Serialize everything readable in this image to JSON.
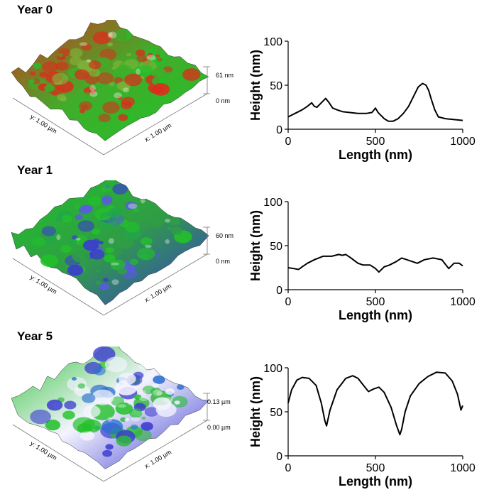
{
  "colors": {
    "red": "#e0291b",
    "green": "#22c02a",
    "blue": "#3a3ad0",
    "white": "#f4f4ff",
    "line": "#000000"
  },
  "chart_data": [
    {
      "type": "line",
      "title": "Year 0",
      "xlabel": "Length (nm)",
      "ylabel": "Height (nm)",
      "xlim": [
        0,
        1000
      ],
      "ylim": [
        0,
        100
      ],
      "xticks": [
        "0",
        "500",
        "1000"
      ],
      "yticks": [
        "0",
        "50",
        "100"
      ],
      "x": [
        0,
        40,
        80,
        110,
        135,
        150,
        165,
        190,
        215,
        235,
        255,
        280,
        310,
        350,
        400,
        450,
        480,
        500,
        515,
        530,
        550,
        575,
        600,
        630,
        660,
        690,
        720,
        745,
        770,
        790,
        805,
        820,
        840,
        860,
        900,
        950,
        1000
      ],
      "y": [
        14,
        18,
        22,
        26,
        30,
        26,
        25,
        30,
        35,
        30,
        24,
        22,
        20,
        19,
        18,
        18,
        19,
        24,
        19,
        16,
        12,
        9,
        9,
        12,
        18,
        26,
        38,
        48,
        52,
        50,
        44,
        34,
        22,
        14,
        12,
        11,
        10
      ],
      "surface": {
        "x_label": "x: 1.00 µm",
        "y_label": "y: 1.00 µm",
        "z_max_label": "61 nm",
        "z_min_label": "0 nm",
        "palette": "red-green"
      }
    },
    {
      "type": "line",
      "title": "Year 1",
      "xlabel": "Length (nm)",
      "ylabel": "Height (nm)",
      "xlim": [
        0,
        1000
      ],
      "ylim": [
        0,
        100
      ],
      "xticks": [
        "0",
        "500",
        "1000"
      ],
      "yticks": [
        "0",
        "50",
        "100"
      ],
      "x": [
        0,
        30,
        60,
        80,
        110,
        150,
        200,
        250,
        290,
        310,
        330,
        360,
        400,
        430,
        470,
        500,
        520,
        550,
        580,
        620,
        650,
        680,
        710,
        740,
        780,
        830,
        880,
        920,
        950,
        980,
        1000
      ],
      "y": [
        25,
        24,
        23,
        26,
        30,
        34,
        38,
        38,
        40,
        39,
        40,
        36,
        30,
        28,
        28,
        24,
        20,
        26,
        28,
        32,
        36,
        34,
        32,
        30,
        34,
        36,
        34,
        24,
        30,
        30,
        27
      ],
      "surface": {
        "x_label": "x: 1.00 µm",
        "y_label": "y: 1.00 µm",
        "z_max_label": "60 nm",
        "z_min_label": "0 nm",
        "palette": "green-blue"
      }
    },
    {
      "type": "line",
      "title": "Year 5",
      "xlabel": "Length (nm)",
      "ylabel": "Height (nm)",
      "xlim": [
        0,
        1000
      ],
      "ylim": [
        0,
        100
      ],
      "xticks": [
        "0",
        "500",
        "1000"
      ],
      "yticks": [
        "0",
        "50",
        "100"
      ],
      "x": [
        0,
        20,
        50,
        80,
        120,
        160,
        190,
        210,
        220,
        240,
        280,
        330,
        370,
        400,
        440,
        460,
        490,
        520,
        550,
        590,
        620,
        640,
        650,
        670,
        700,
        750,
        800,
        850,
        900,
        940,
        970,
        990,
        1000
      ],
      "y": [
        60,
        75,
        86,
        89,
        88,
        80,
        60,
        40,
        34,
        52,
        75,
        88,
        91,
        88,
        78,
        73,
        76,
        78,
        72,
        55,
        35,
        24,
        30,
        50,
        68,
        82,
        90,
        95,
        94,
        85,
        70,
        52,
        57
      ],
      "surface": {
        "x_label": "x: 1.00 µm",
        "y_label": "y: 1.00 µm",
        "z_max_label": "0.13 µm",
        "z_min_label": "0.00 µm",
        "palette": "green-blue-white"
      }
    }
  ]
}
